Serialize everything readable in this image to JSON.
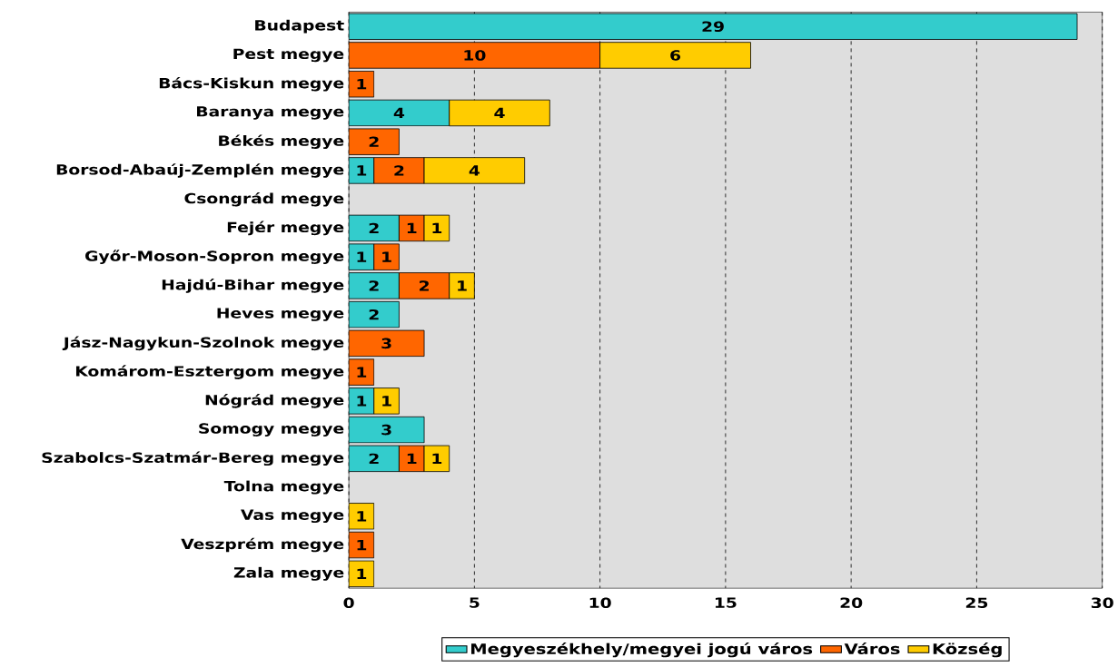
{
  "chart_data": {
    "type": "bar",
    "orientation": "horizontal",
    "stacked": true,
    "data_labels": true,
    "grid": "x",
    "legend": "bottom",
    "categories": [
      "Budapest",
      "Pest megye",
      "Bács-Kiskun megye",
      "Baranya megye",
      "Békés megye",
      "Borsod-Abaúj-Zemplén megye",
      "Csongrád megye",
      "Fejér megye",
      "Győr-Moson-Sopron megye",
      "Hajdú-Bihar megye",
      "Heves megye",
      "Jász-Nagykun-Szolnok megye",
      "Komárom-Esztergom megye",
      "Nógrád megye",
      "Somogy megye",
      "Szabolcs-Szatmár-Bereg megye",
      "Tolna megye",
      "Vas megye",
      "Veszprém megye",
      "Zala megye"
    ],
    "series": [
      {
        "name": "Megyeszékhely/megyei jogú város",
        "color": "#33cccc",
        "values": [
          29,
          null,
          null,
          4,
          null,
          1,
          null,
          2,
          1,
          2,
          2,
          null,
          null,
          1,
          3,
          2,
          null,
          null,
          null,
          null
        ]
      },
      {
        "name": "Város",
        "color": "#ff6600",
        "values": [
          null,
          10,
          1,
          null,
          2,
          2,
          null,
          1,
          1,
          2,
          null,
          3,
          1,
          null,
          null,
          1,
          null,
          null,
          1,
          null
        ]
      },
      {
        "name": "Község",
        "color": "#ffcc00",
        "values": [
          null,
          6,
          null,
          4,
          null,
          4,
          null,
          1,
          null,
          1,
          null,
          null,
          null,
          1,
          null,
          1,
          null,
          1,
          null,
          1
        ]
      }
    ],
    "xlim": [
      0,
      30
    ],
    "xticks": [
      0,
      5,
      10,
      15,
      20,
      25,
      30
    ]
  }
}
